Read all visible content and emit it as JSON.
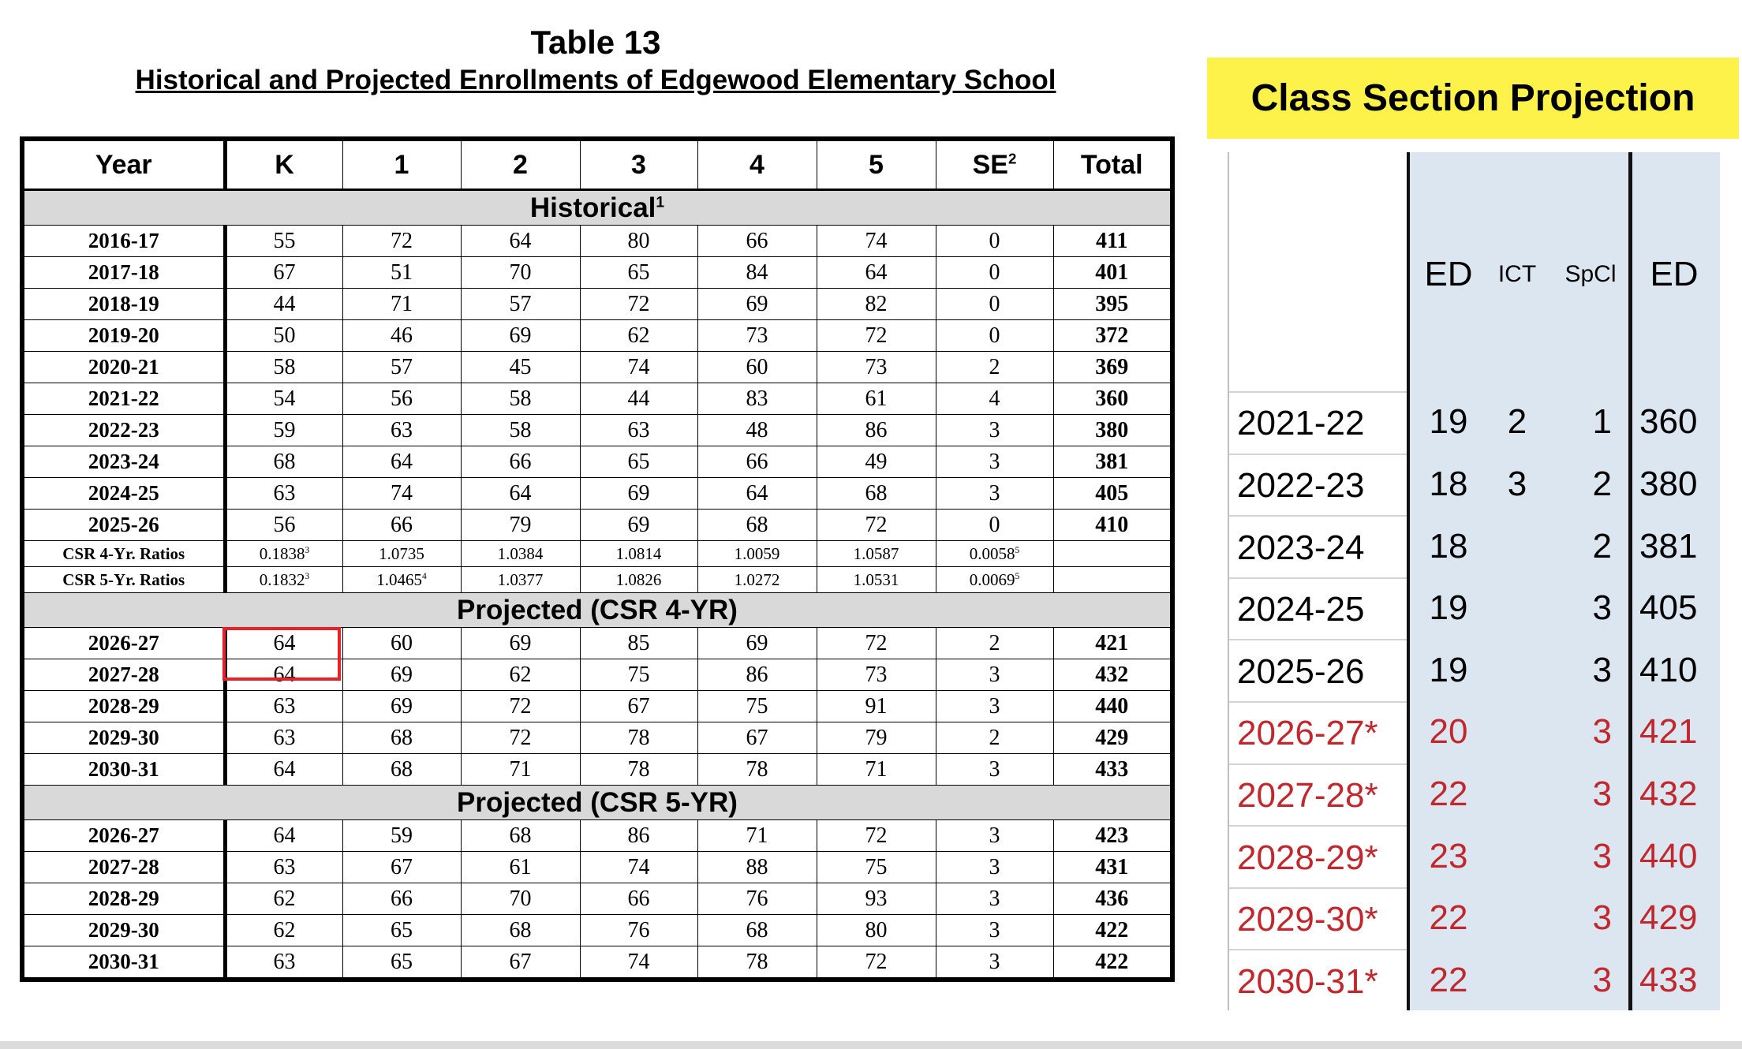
{
  "table": {
    "title": "Table 13",
    "subtitle": "Historical and Projected Enrollments of Edgewood Elementary School",
    "header": [
      "Year",
      "K",
      "1",
      "2",
      "3",
      "4",
      "5",
      {
        "text": "SE",
        "note": "2"
      },
      "Total"
    ],
    "sections": [
      {
        "label": {
          "text": "Historical",
          "note": "1"
        },
        "rows": [
          [
            "2016-17",
            55,
            72,
            64,
            80,
            66,
            74,
            0,
            411
          ],
          [
            "2017-18",
            67,
            51,
            70,
            65,
            84,
            64,
            0,
            401
          ],
          [
            "2018-19",
            44,
            71,
            57,
            72,
            69,
            82,
            0,
            395
          ],
          [
            "2019-20",
            50,
            46,
            69,
            62,
            73,
            72,
            0,
            372
          ],
          [
            "2020-21",
            58,
            57,
            45,
            74,
            60,
            73,
            2,
            369
          ],
          [
            "2021-22",
            54,
            56,
            58,
            44,
            83,
            61,
            4,
            360
          ],
          [
            "2022-23",
            59,
            63,
            58,
            63,
            48,
            86,
            3,
            380
          ],
          [
            "2023-24",
            68,
            64,
            66,
            65,
            66,
            49,
            3,
            381
          ],
          [
            "2024-25",
            63,
            74,
            64,
            69,
            64,
            68,
            3,
            405
          ],
          [
            "2025-26",
            56,
            66,
            79,
            69,
            68,
            72,
            0,
            410
          ]
        ],
        "ratio_rows": [
          [
            "CSR 4-Yr. Ratios",
            {
              "text": "0.1838",
              "note": "3"
            },
            "1.0735",
            "1.0384",
            "1.0814",
            "1.0059",
            "1.0587",
            {
              "text": "0.0058",
              "note": "5"
            }
          ],
          [
            "CSR 5-Yr. Ratios",
            {
              "text": "0.1832",
              "note": "3"
            },
            {
              "text": "1.0465",
              "note": "4"
            },
            "1.0377",
            "1.0826",
            "1.0272",
            "1.0531",
            {
              "text": "0.0069",
              "note": "5"
            }
          ]
        ]
      },
      {
        "label": "Projected (CSR 4-YR)",
        "rows": [
          [
            "2026-27",
            64,
            60,
            69,
            85,
            69,
            72,
            2,
            421
          ],
          [
            "2027-28",
            64,
            69,
            62,
            75,
            86,
            73,
            3,
            432
          ],
          [
            "2028-29",
            63,
            69,
            72,
            67,
            75,
            91,
            3,
            440
          ],
          [
            "2029-30",
            63,
            68,
            72,
            78,
            67,
            79,
            2,
            429
          ],
          [
            "2030-31",
            64,
            68,
            71,
            78,
            78,
            71,
            3,
            433
          ]
        ]
      },
      {
        "label": "Projected (CSR 5-YR)",
        "rows": [
          [
            "2026-27",
            64,
            59,
            68,
            86,
            71,
            72,
            3,
            423
          ],
          [
            "2027-28",
            63,
            67,
            61,
            74,
            88,
            75,
            3,
            431
          ],
          [
            "2028-29",
            62,
            66,
            70,
            66,
            76,
            93,
            3,
            436
          ],
          [
            "2029-30",
            62,
            65,
            68,
            76,
            68,
            80,
            3,
            422
          ],
          [
            "2030-31",
            63,
            65,
            67,
            74,
            78,
            72,
            3,
            422
          ]
        ]
      }
    ]
  },
  "panel": {
    "title": "Class Section Projection",
    "columns": [
      "ED",
      "ICT",
      "SpCl",
      "ED"
    ],
    "rows": [
      {
        "year": "2021-22",
        "values": [
          19,
          2,
          1,
          360
        ]
      },
      {
        "year": "2022-23",
        "values": [
          18,
          3,
          2,
          380
        ]
      },
      {
        "year": "2023-24",
        "values": [
          18,
          null,
          2,
          381
        ]
      },
      {
        "year": "2024-25",
        "values": [
          19,
          null,
          3,
          405
        ]
      },
      {
        "year": "2025-26",
        "values": [
          19,
          null,
          3,
          410
        ]
      }
    ],
    "projected_rows": [
      {
        "year": "2026-27*",
        "values": [
          20,
          null,
          3,
          421
        ]
      },
      {
        "year": "2027-28*",
        "values": [
          22,
          null,
          3,
          432
        ]
      },
      {
        "year": "2028-29*",
        "values": [
          23,
          null,
          3,
          440
        ]
      },
      {
        "year": "2029-30*",
        "values": [
          22,
          null,
          3,
          429
        ]
      },
      {
        "year": "2030-31*",
        "values": [
          22,
          null,
          3,
          433
        ]
      }
    ],
    "projected_color": "#c0282d"
  }
}
